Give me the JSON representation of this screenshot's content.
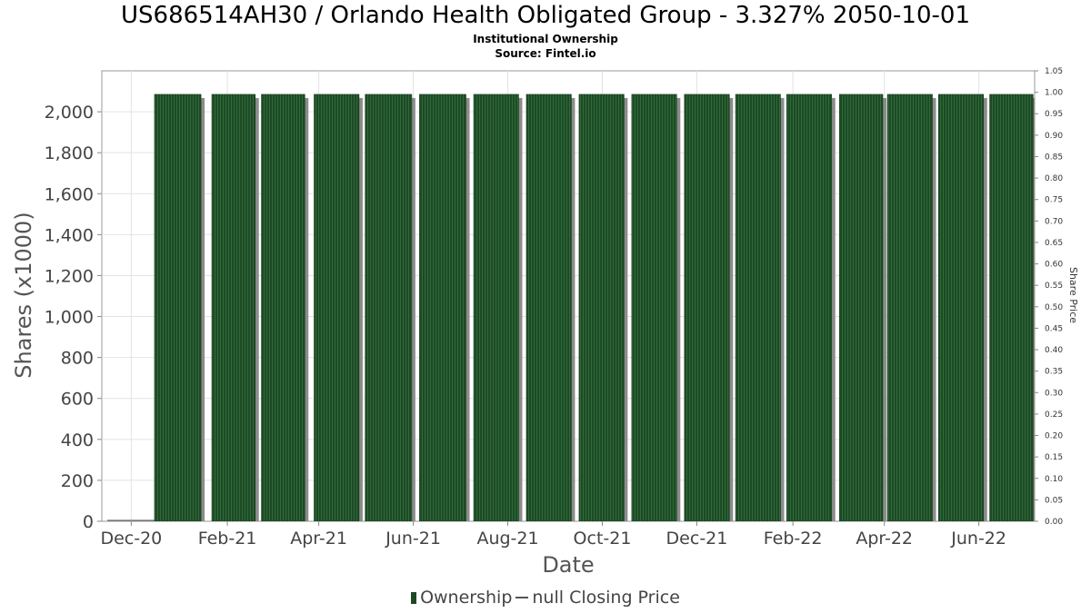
{
  "title": "US686514AH30 / Orlando Health Obligated Group - 3.327% 2050-10-01",
  "subtitle": "Institutional Ownership",
  "source": "Source: Fintel.io",
  "legend": {
    "ownership": "Ownership",
    "price": "null Closing Price"
  },
  "colors": {
    "bar_fill": "#1d4a24",
    "bar_shadow": "#8c8c8c",
    "grid": "#e3e3e3",
    "frame": "#999999"
  },
  "chart_data": {
    "type": "bar",
    "grid": true,
    "legend_position": "bottom-center",
    "xlabel": "Date",
    "ylabel": "Shares (x1000)",
    "y2label": "Share Price",
    "ylim": [
      0,
      2200
    ],
    "y2lim": [
      0,
      1.05
    ],
    "y_ticks": [
      0,
      200,
      400,
      600,
      800,
      1000,
      1200,
      1400,
      1600,
      1800,
      2000
    ],
    "y_tick_labels": [
      "0",
      "200",
      "400",
      "600",
      "800",
      "1,000",
      "1,200",
      "1,400",
      "1,600",
      "1,800",
      "2,000"
    ],
    "y2_ticks": [
      0,
      0.05,
      0.1,
      0.15,
      0.2,
      0.25,
      0.3,
      0.35,
      0.4,
      0.45,
      0.5,
      0.55,
      0.6,
      0.65,
      0.7,
      0.75,
      0.8,
      0.85,
      0.9,
      0.95,
      1.0,
      1.05
    ],
    "y2_tick_labels": [
      "0.00",
      "0.05",
      "0.10",
      "0.15",
      "0.20",
      "0.25",
      "0.30",
      "0.35",
      "0.40",
      "0.45",
      "0.50",
      "0.55",
      "0.60",
      "0.65",
      "0.70",
      "0.75",
      "0.80",
      "0.85",
      "0.90",
      "0.95",
      "1.00",
      "1.05"
    ],
    "xlim": [
      "2020-11-12",
      "2022-07-07"
    ],
    "x_ticks": [
      "2020-12-01",
      "2021-02-01",
      "2021-04-01",
      "2021-06-01",
      "2021-08-01",
      "2021-10-01",
      "2021-12-01",
      "2022-02-01",
      "2022-04-01",
      "2022-06-01"
    ],
    "x_tick_labels": [
      "Dec-20",
      "Feb-21",
      "Apr-21",
      "Jun-21",
      "Aug-21",
      "Oct-21",
      "Dec-21",
      "Feb-22",
      "Apr-22",
      "Jun-22"
    ],
    "series": [
      {
        "name": "Ownership",
        "bars": [
          {
            "start": "2020-12-16",
            "end": "2021-01-15",
            "value": 2085
          },
          {
            "start": "2021-01-22",
            "end": "2021-02-19",
            "value": 2085
          },
          {
            "start": "2021-02-23",
            "end": "2021-03-23",
            "value": 2085
          },
          {
            "start": "2021-03-29",
            "end": "2021-04-27",
            "value": 2085
          },
          {
            "start": "2021-05-01",
            "end": "2021-05-31",
            "value": 2085
          },
          {
            "start": "2021-06-05",
            "end": "2021-07-05",
            "value": 2085
          },
          {
            "start": "2021-07-10",
            "end": "2021-08-08",
            "value": 2085
          },
          {
            "start": "2021-08-13",
            "end": "2021-09-11",
            "value": 2085
          },
          {
            "start": "2021-09-16",
            "end": "2021-10-15",
            "value": 2085
          },
          {
            "start": "2021-10-20",
            "end": "2021-11-18",
            "value": 2085
          },
          {
            "start": "2021-11-23",
            "end": "2021-12-22",
            "value": 2085
          },
          {
            "start": "2021-12-26",
            "end": "2022-01-24",
            "value": 2085
          },
          {
            "start": "2022-01-28",
            "end": "2022-02-26",
            "value": 2085
          },
          {
            "start": "2022-03-03",
            "end": "2022-03-31",
            "value": 2085
          },
          {
            "start": "2022-04-03",
            "end": "2022-05-02",
            "value": 2085
          },
          {
            "start": "2022-05-06",
            "end": "2022-06-04",
            "value": 2085
          },
          {
            "start": "2022-06-08",
            "end": "2022-07-06",
            "value": 2085
          },
          {
            "start": "2022-07-11",
            "end": "2022-08-08",
            "value": 2085
          }
        ]
      }
    ]
  }
}
